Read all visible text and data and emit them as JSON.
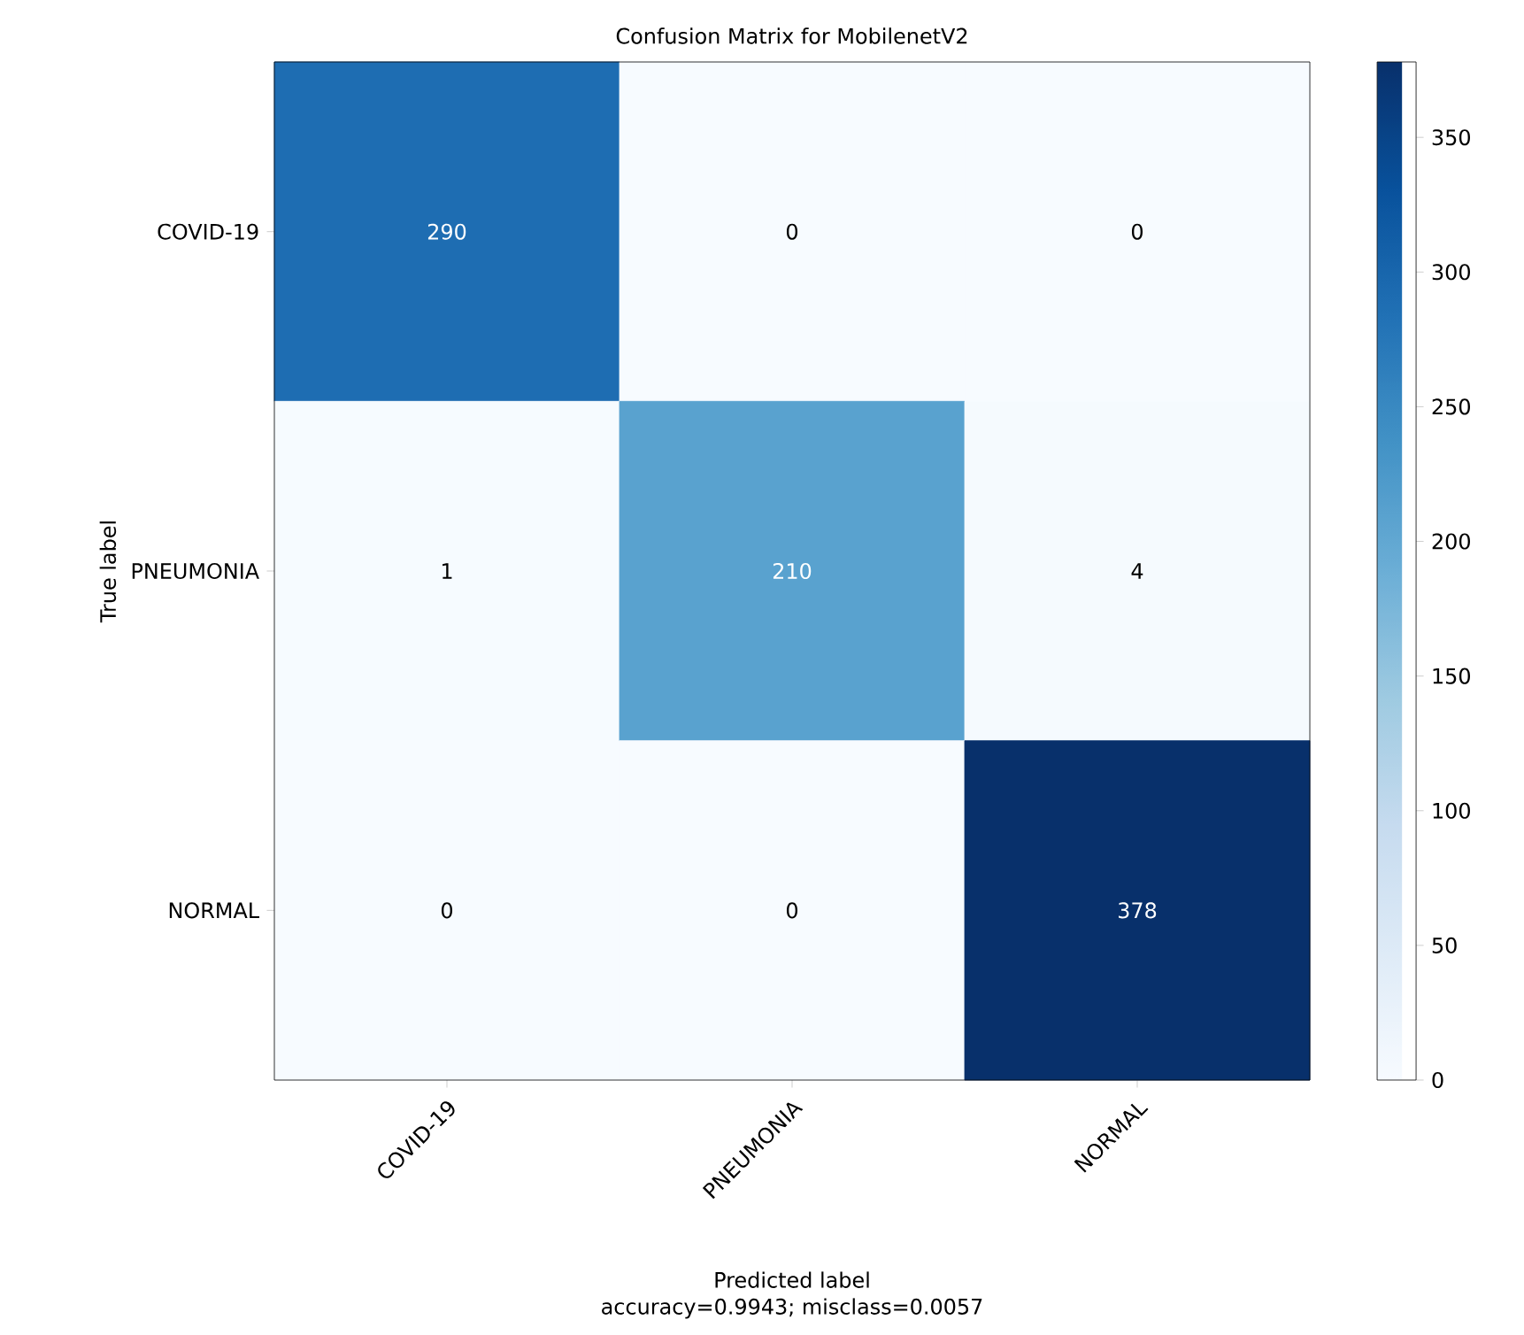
{
  "chart_data": {
    "type": "heatmap",
    "title": "Confusion Matrix for MobilenetV2",
    "xlabel": "Predicted label",
    "ylabel": "True label",
    "categories": [
      "COVID-19",
      "PNEUMONIA",
      "NORMAL"
    ],
    "y_categories": [
      "COVID-19",
      "PNEUMONIA",
      "NORMAL"
    ],
    "cells": [
      [
        290,
        0,
        0
      ],
      [
        1,
        210,
        4
      ],
      [
        0,
        0,
        378
      ]
    ],
    "data_labels": true,
    "clim": [
      0,
      378
    ],
    "cticks": [
      0,
      50,
      100,
      150,
      200,
      250,
      300,
      350
    ],
    "annotations": [
      "accuracy=0.9943; misclass=0.0057"
    ]
  }
}
